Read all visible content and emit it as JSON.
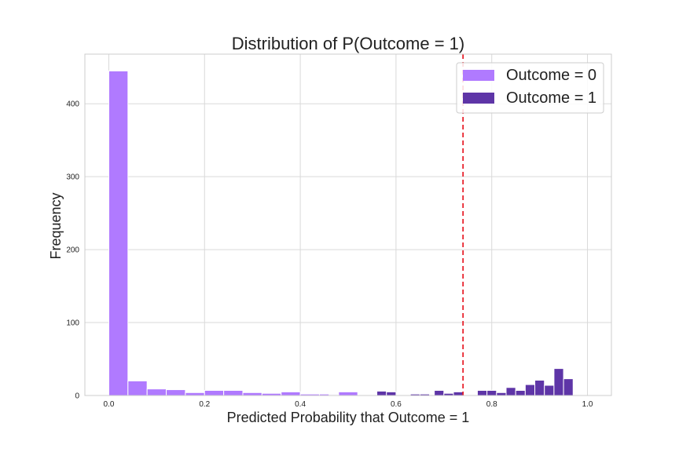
{
  "chart_data": {
    "type": "bar",
    "title": "Distribution of P(Outcome = 1)",
    "xlabel": "Predicted Probability that Outcome = 1",
    "ylabel": "Frequency",
    "xlim": [
      -0.05,
      1.05
    ],
    "ylim": [
      0,
      468
    ],
    "x_ticks": [
      0.0,
      0.2,
      0.4,
      0.6,
      0.8,
      1.0
    ],
    "x_tick_labels": [
      "0.0",
      "0.2",
      "0.4",
      "0.6",
      "0.8",
      "1.0"
    ],
    "y_ticks": [
      0,
      100,
      200,
      300,
      400
    ],
    "y_tick_labels": [
      "0",
      "100",
      "200",
      "300",
      "400"
    ],
    "grid": true,
    "legend_position": "top-right",
    "threshold": 0.74,
    "threshold_color": "#e8202a",
    "series": [
      {
        "name": "Outcome = 0",
        "color": "#b07aff",
        "bins": [
          [
            0.0,
            0.04,
            445
          ],
          [
            0.04,
            0.08,
            20
          ],
          [
            0.08,
            0.12,
            9
          ],
          [
            0.12,
            0.16,
            8
          ],
          [
            0.16,
            0.2,
            4
          ],
          [
            0.2,
            0.24,
            7
          ],
          [
            0.24,
            0.28,
            7
          ],
          [
            0.28,
            0.32,
            4
          ],
          [
            0.32,
            0.36,
            3
          ],
          [
            0.36,
            0.4,
            5
          ],
          [
            0.4,
            0.44,
            2
          ],
          [
            0.44,
            0.48,
            2
          ],
          [
            0.48,
            0.52,
            5
          ]
        ]
      },
      {
        "name": "Outcome = 1",
        "color": "#5e35a7",
        "bins": [
          [
            0.46,
            0.48,
            1
          ],
          [
            0.54,
            0.56,
            1
          ],
          [
            0.56,
            0.58,
            6
          ],
          [
            0.58,
            0.6,
            5
          ],
          [
            0.63,
            0.65,
            2
          ],
          [
            0.65,
            0.67,
            2
          ],
          [
            0.68,
            0.7,
            7
          ],
          [
            0.7,
            0.72,
            3
          ],
          [
            0.72,
            0.74,
            5
          ],
          [
            0.77,
            0.79,
            7
          ],
          [
            0.79,
            0.81,
            7
          ],
          [
            0.81,
            0.83,
            4
          ],
          [
            0.83,
            0.85,
            11
          ],
          [
            0.85,
            0.87,
            7
          ],
          [
            0.87,
            0.89,
            15
          ],
          [
            0.89,
            0.91,
            21
          ],
          [
            0.91,
            0.93,
            14
          ],
          [
            0.93,
            0.95,
            37
          ],
          [
            0.95,
            0.97,
            23
          ]
        ]
      }
    ]
  }
}
